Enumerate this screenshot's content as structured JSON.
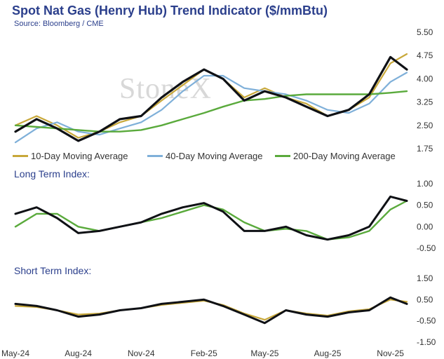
{
  "header": {
    "title": "Spot Nat Gas (Henry Hub) Trend Indicator ($/mmBtu)",
    "source": "Source: Bloomberg / CME",
    "watermark": "StoneX"
  },
  "colors": {
    "price": "#0f1115",
    "ma10": "#c8a83a",
    "ma40": "#7fb0d9",
    "ma200": "#5aaa3c",
    "long_index": "#0f1115",
    "long_index_smooth": "#5aaa3c",
    "short_index": "#0f1115",
    "short_index_smooth": "#c8a83a"
  },
  "chart_data": [
    {
      "type": "line",
      "panel": "price",
      "title": "Spot Nat Gas (Henry Hub) Trend Indicator ($/mmBtu)",
      "x": [
        "2024-05-01",
        "2024-06-01",
        "2024-07-01",
        "2024-08-01",
        "2024-09-01",
        "2024-10-01",
        "2024-11-01",
        "2024-12-01",
        "2025-01-01",
        "2025-02-01",
        "2025-03-01",
        "2025-04-01",
        "2025-05-01",
        "2025-06-01",
        "2025-07-01",
        "2025-08-01",
        "2025-09-01",
        "2025-10-01",
        "2025-11-01",
        "2025-11-25"
      ],
      "ylim": [
        1.75,
        5.5
      ],
      "yticks": [
        "1.75",
        "2.50",
        "3.25",
        "4.00",
        "4.75",
        "5.50"
      ],
      "xticks": [
        "May-24",
        "Aug-24",
        "Nov-24",
        "Feb-25",
        "May-25",
        "Aug-25",
        "Nov-25"
      ],
      "legend": "bottom",
      "series": [
        {
          "name": "",
          "key": "price",
          "values": [
            2.3,
            2.7,
            2.4,
            2.0,
            2.3,
            2.7,
            2.8,
            3.4,
            3.9,
            4.3,
            4.0,
            3.3,
            3.6,
            3.4,
            3.1,
            2.8,
            3.0,
            3.5,
            4.7,
            4.3
          ]
        },
        {
          "name": "10-Day Moving Average",
          "key": "ma10",
          "values": [
            2.5,
            2.8,
            2.5,
            2.1,
            2.3,
            2.6,
            2.8,
            3.3,
            3.8,
            4.3,
            4.0,
            3.4,
            3.7,
            3.4,
            3.2,
            2.8,
            3.0,
            3.4,
            4.5,
            4.8
          ]
        },
        {
          "name": "40-Day Moving Average",
          "key": "ma40",
          "values": [
            1.95,
            2.4,
            2.6,
            2.3,
            2.2,
            2.4,
            2.6,
            3.0,
            3.6,
            4.1,
            4.1,
            3.7,
            3.6,
            3.5,
            3.3,
            3.0,
            2.9,
            3.2,
            3.9,
            4.2
          ]
        },
        {
          "name": "200-Day Moving Average",
          "key": "ma200",
          "values": [
            2.5,
            2.45,
            2.4,
            2.35,
            2.3,
            2.3,
            2.35,
            2.5,
            2.7,
            2.9,
            3.1,
            3.3,
            3.35,
            3.45,
            3.5,
            3.5,
            3.5,
            3.5,
            3.55,
            3.6
          ]
        }
      ]
    },
    {
      "type": "line",
      "panel": "long",
      "title": "Long Term Index:",
      "x": [
        "2024-05-01",
        "2024-06-01",
        "2024-07-01",
        "2024-08-01",
        "2024-09-01",
        "2024-10-01",
        "2024-11-01",
        "2024-12-01",
        "2025-01-01",
        "2025-02-01",
        "2025-03-01",
        "2025-04-01",
        "2025-05-01",
        "2025-06-01",
        "2025-07-01",
        "2025-08-01",
        "2025-09-01",
        "2025-10-01",
        "2025-11-01",
        "2025-11-25"
      ],
      "ylim": [
        -0.6,
        1.0
      ],
      "yticks": [
        "-0.50",
        "0.00",
        "0.50",
        "1.00"
      ],
      "series": [
        {
          "name": "",
          "key": "long_index",
          "values": [
            0.3,
            0.45,
            0.2,
            -0.15,
            -0.1,
            0.0,
            0.1,
            0.3,
            0.45,
            0.55,
            0.35,
            -0.1,
            -0.1,
            0.0,
            -0.2,
            -0.3,
            -0.2,
            0.0,
            0.7,
            0.6
          ]
        },
        {
          "name": "",
          "key": "long_index_smooth",
          "values": [
            0.0,
            0.3,
            0.3,
            0.0,
            -0.1,
            0.0,
            0.1,
            0.2,
            0.35,
            0.5,
            0.4,
            0.1,
            -0.1,
            -0.05,
            -0.1,
            -0.3,
            -0.25,
            -0.1,
            0.4,
            0.6
          ]
        }
      ]
    },
    {
      "type": "line",
      "panel": "short",
      "title": "Short Term Index:",
      "x": [
        "2024-05-01",
        "2024-06-01",
        "2024-07-01",
        "2024-08-01",
        "2024-09-01",
        "2024-10-01",
        "2024-11-01",
        "2024-12-01",
        "2025-01-01",
        "2025-02-01",
        "2025-03-01",
        "2025-04-01",
        "2025-05-01",
        "2025-06-01",
        "2025-07-01",
        "2025-08-01",
        "2025-09-01",
        "2025-10-01",
        "2025-11-01",
        "2025-11-25"
      ],
      "ylim": [
        -1.5,
        1.5
      ],
      "yticks": [
        "-1.50",
        "-0.50",
        "0.50",
        "1.50"
      ],
      "series": [
        {
          "name": "",
          "key": "short_index",
          "values": [
            0.3,
            0.2,
            0.0,
            -0.3,
            -0.2,
            0.0,
            0.1,
            0.3,
            0.4,
            0.5,
            0.2,
            -0.2,
            -0.6,
            0.0,
            -0.2,
            -0.3,
            -0.1,
            0.0,
            0.6,
            0.3
          ]
        },
        {
          "name": "",
          "key": "short_index_smooth",
          "values": [
            0.2,
            0.15,
            0.0,
            -0.2,
            -0.15,
            0.0,
            0.1,
            0.25,
            0.35,
            0.45,
            0.25,
            -0.15,
            -0.45,
            0.0,
            -0.15,
            -0.25,
            -0.05,
            0.05,
            0.5,
            0.4
          ]
        }
      ]
    }
  ]
}
